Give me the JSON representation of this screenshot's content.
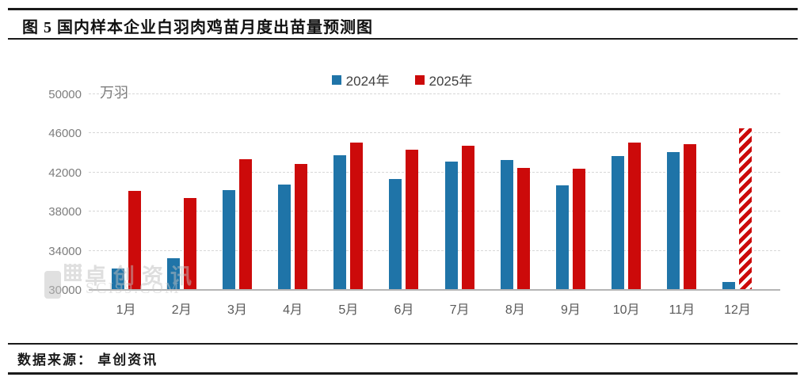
{
  "title": "图 5 国内样本企业白羽肉鸡苗月度出苗量预测图",
  "source": "数据来源： 卓创资讯",
  "watermark": {
    "line1": "卓创资讯",
    "line2": "SCI99.COM"
  },
  "chart_data": {
    "type": "bar",
    "title": "国内样本企业白羽肉鸡苗月度出苗量预测图",
    "unit_label": "万羽",
    "categories": [
      "1月",
      "2月",
      "3月",
      "4月",
      "5月",
      "6月",
      "7月",
      "8月",
      "9月",
      "10月",
      "11月",
      "12月"
    ],
    "series": [
      {
        "name": "2024年",
        "color": "#1f74a8",
        "values": [
          32200,
          33200,
          40200,
          40800,
          43800,
          41300,
          43100,
          43300,
          40700,
          43700,
          44100,
          30800
        ]
      },
      {
        "name": "2025年",
        "color": "#cc0a0a",
        "values": [
          40100,
          39400,
          43400,
          42900,
          45100,
          44300,
          44700,
          42500,
          42400,
          45100,
          44900,
          46500
        ],
        "hatched_indices": [
          11
        ],
        "note": "12月为预测值(斜纹柱)"
      }
    ],
    "ylim": [
      30000,
      50000
    ],
    "yticks": [
      30000,
      34000,
      38000,
      42000,
      46000,
      50000
    ],
    "grid": "dashed-horizontal",
    "legend_position": "top-center"
  }
}
